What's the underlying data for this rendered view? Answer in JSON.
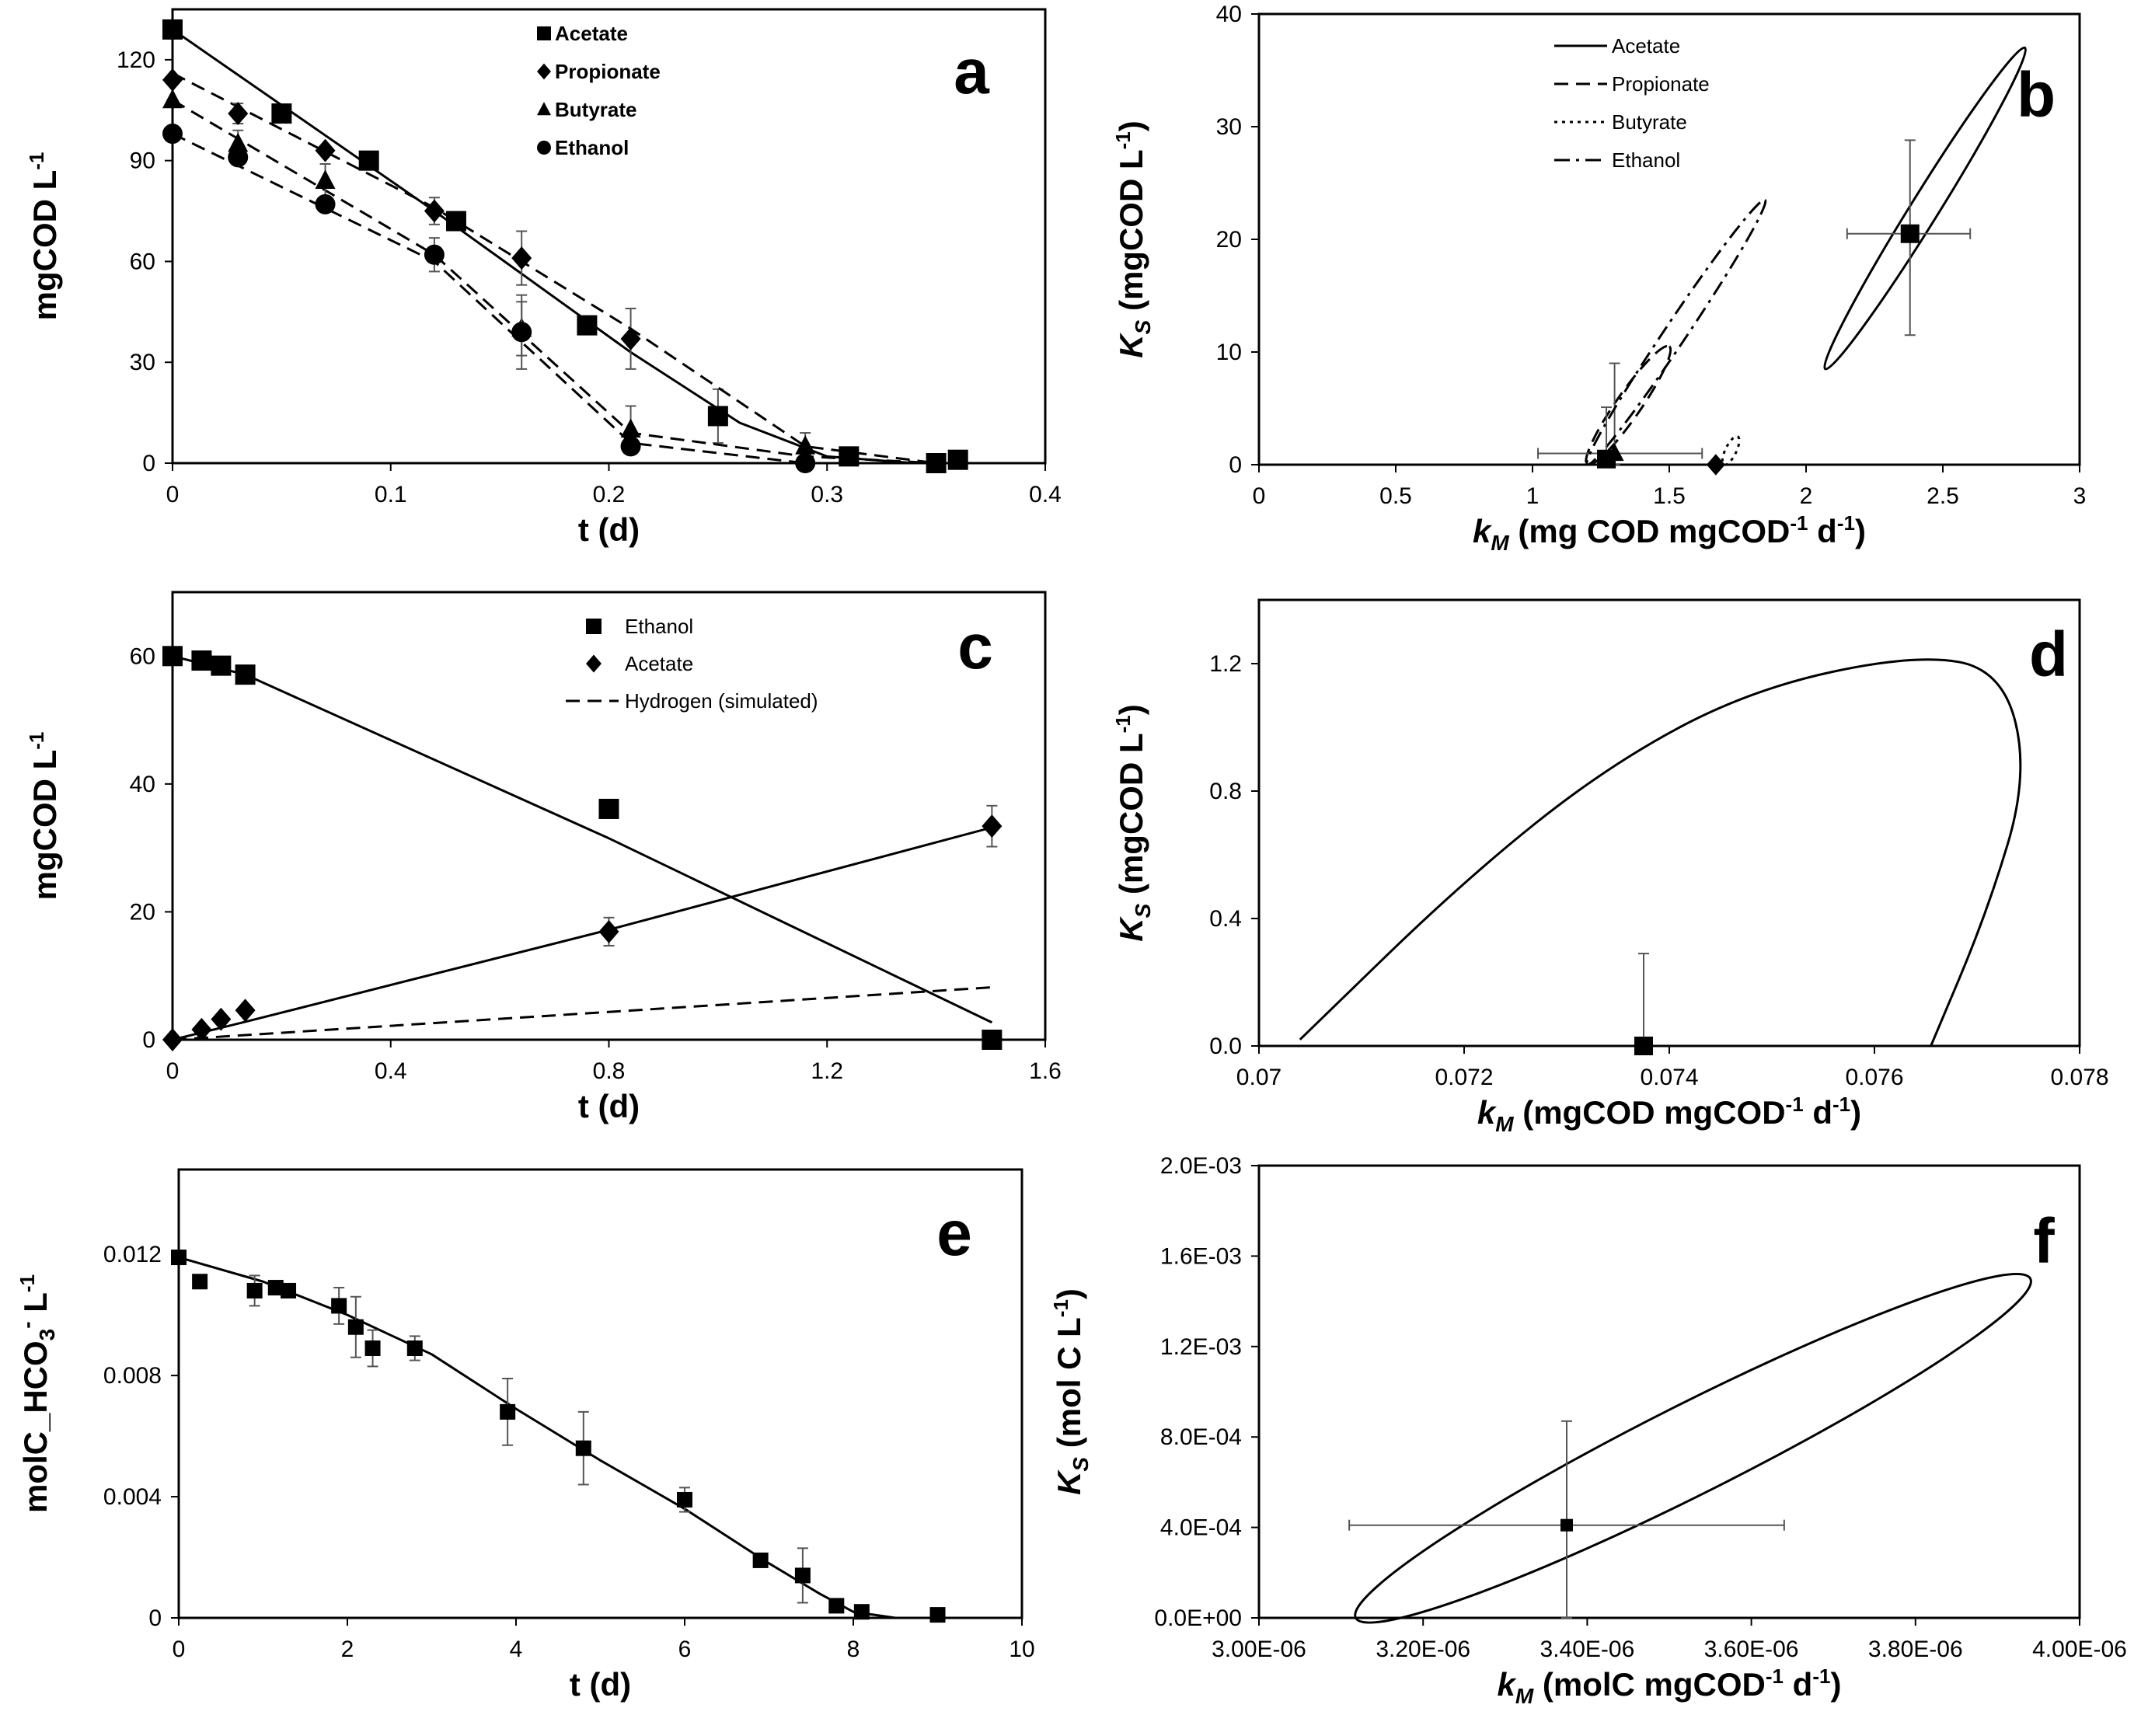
{
  "chart_data": [
    {
      "panel": "a",
      "type": "scatter",
      "xlabel": "t (d)",
      "ylabel": "mgCOD L-1",
      "xlim": [
        0,
        0.4
      ],
      "ylim": [
        0,
        135
      ],
      "xticks": [
        "0",
        "0.1",
        "0.2",
        "0.3",
        "0.4"
      ],
      "yticks": [
        "0",
        "30",
        "60",
        "90",
        "120"
      ],
      "legend_position": "top-center",
      "series": [
        {
          "name": "Acetate",
          "marker": "square",
          "line": "solid",
          "x": [
            0,
            0.05,
            0.09,
            0.13,
            0.19,
            0.25,
            0.31,
            0.35,
            0.36
          ],
          "y": [
            129,
            104,
            90,
            72,
            41,
            14,
            2,
            0,
            1
          ],
          "err": [
            0,
            0,
            0,
            0,
            0,
            8,
            0,
            0,
            0
          ],
          "model_x": [
            0,
            0.12,
            0.21,
            0.26,
            0.3,
            0.34,
            0.36
          ],
          "model_y": [
            129,
            75,
            33,
            12,
            2,
            0,
            0
          ]
        },
        {
          "name": "Propionate",
          "marker": "diamond",
          "line": "dashed",
          "x": [
            0,
            0.03,
            0.07,
            0.12,
            0.16,
            0.21
          ],
          "y": [
            114,
            104,
            93,
            75,
            61,
            37
          ],
          "err": [
            0,
            3,
            0,
            4,
            8,
            9
          ],
          "model_x": [
            0,
            0.12,
            0.21,
            0.29,
            0.35
          ],
          "model_y": [
            116,
            76,
            40,
            5,
            0
          ]
        },
        {
          "name": "Butyrate",
          "marker": "triangle",
          "line": "dashed",
          "x": [
            0,
            0.03,
            0.07,
            0.16,
            0.21,
            0.29
          ],
          "y": [
            108,
            95,
            84,
            40,
            10,
            5
          ],
          "err": [
            0,
            4,
            5,
            8,
            7,
            4
          ],
          "model_x": [
            0,
            0.12,
            0.21,
            0.29,
            0.35
          ],
          "model_y": [
            108,
            62,
            9,
            2,
            0
          ]
        },
        {
          "name": "Ethanol",
          "marker": "circle",
          "line": "dashed",
          "x": [
            0,
            0.03,
            0.07,
            0.12,
            0.16,
            0.21,
            0.29
          ],
          "y": [
            98,
            91,
            77,
            62,
            39,
            5,
            0
          ],
          "err": [
            0,
            0,
            0,
            5,
            11,
            0,
            0
          ],
          "model_x": [
            0,
            0.12,
            0.21,
            0.29,
            0.35
          ],
          "model_y": [
            98,
            60,
            6,
            0,
            0
          ]
        }
      ]
    },
    {
      "panel": "b",
      "type": "scatter",
      "xlabel": "kM (mg COD mgCOD-1 d-1)",
      "ylabel": "KS (mgCOD L-1)",
      "xlim": [
        0,
        3
      ],
      "ylim": [
        0,
        40
      ],
      "xticks": [
        "0",
        "0.5",
        "1",
        "1.5",
        "2",
        "2.5",
        "3"
      ],
      "yticks": [
        "0",
        "10",
        "20",
        "30",
        "40"
      ],
      "legend_position": "top-left",
      "series": [
        {
          "name": "Acetate",
          "line": "solid",
          "estimate": [
            2.38,
            20.5
          ],
          "xerr": [
            2.15,
            2.6
          ],
          "yerr": [
            11.5,
            28.8
          ],
          "region": {
            "lower": [
              2.07,
              8.5
            ],
            "upper": [
              2.8,
              37
            ]
          }
        },
        {
          "name": "Propionate",
          "line": "dashed",
          "estimate": [
            1.67,
            0
          ],
          "region": {
            "lower": [
              1.2,
              0
            ],
            "upper": [
              1.5,
              10.5
            ]
          }
        },
        {
          "name": "Butyrate",
          "line": "dotted",
          "estimate": [
            1.3,
            1.0
          ],
          "xerr": [
            1.02,
            1.62
          ],
          "yerr": [
            0,
            9
          ],
          "region": {
            "lower": [
              1.7,
              0
            ],
            "upper": [
              1.75,
              2.5
            ]
          }
        },
        {
          "name": "Ethanol",
          "line": "dash-dot",
          "estimate": [
            1.27,
            0.5
          ],
          "yerr": [
            0,
            5.1
          ],
          "region": {
            "lower": [
              1.2,
              0
            ],
            "upper": [
              1.85,
              23.5
            ]
          }
        }
      ]
    },
    {
      "panel": "c",
      "type": "scatter",
      "xlabel": "t (d)",
      "ylabel": "mgCOD L-1",
      "xlim": [
        0,
        1.8
      ],
      "ylim": [
        0,
        70
      ],
      "xticks": [
        "0",
        "0.4",
        "0.8",
        "1.2",
        "1.6"
      ],
      "yticks": [
        "0",
        "20",
        "40",
        "60"
      ],
      "legend_position": "top-center",
      "series": [
        {
          "name": "Ethanol",
          "marker": "square",
          "line": "solid",
          "x": [
            0,
            0.06,
            0.1,
            0.15,
            0.9,
            1.69
          ],
          "y": [
            60,
            59.3,
            58.5,
            57.1,
            36.1,
            0
          ],
          "model_x": [
            0,
            0.15,
            0.9,
            1.69
          ],
          "model_y": [
            60,
            57.1,
            31.5,
            2.7
          ]
        },
        {
          "name": "Acetate",
          "marker": "diamond",
          "line": "solid",
          "x": [
            0,
            0.06,
            0.1,
            0.15,
            0.9,
            1.69
          ],
          "y": [
            0,
            1.6,
            3.2,
            4.6,
            16.9,
            33.4
          ],
          "err": [
            0,
            0,
            0,
            0,
            2.2,
            3.2
          ],
          "model_x": [
            0,
            0.15,
            0.9,
            1.69
          ],
          "model_y": [
            0,
            2.8,
            17.2,
            33.2
          ]
        },
        {
          "name": "Hydrogen (simulated)",
          "line": "dashed",
          "model_x": [
            0,
            0.6,
            1.2,
            1.69
          ],
          "model_y": [
            0,
            2.9,
            5.8,
            8.2
          ]
        }
      ]
    },
    {
      "panel": "d",
      "type": "scatter",
      "xlabel": "kM (mgCOD mgCOD-1 d-1)",
      "ylabel": "KS (mgCOD L-1)",
      "xlim": [
        0.07,
        0.078
      ],
      "ylim": [
        0,
        1.4
      ],
      "xticks": [
        "0.07",
        "0.072",
        "0.074",
        "0.076",
        "0.078"
      ],
      "yticks": [
        "0.0",
        "0.4",
        "0.8",
        "1.2"
      ],
      "series": [
        {
          "name": "",
          "estimate": [
            0.07375,
            0.0
          ],
          "yerr": [
            0,
            0.29
          ],
          "region": [
            [
              0.0704,
              0.02
            ],
            [
              0.072,
              0.52
            ],
            [
              0.0734,
              0.88
            ],
            [
              0.0748,
              1.12
            ],
            [
              0.0764,
              1.23
            ],
            [
              0.07725,
              1.18
            ],
            [
              0.0775,
              0.85
            ],
            [
              0.0771,
              0.42
            ],
            [
              0.07655,
              0.0
            ]
          ]
        }
      ]
    },
    {
      "panel": "e",
      "type": "scatter",
      "xlabel": "t (d)",
      "ylabel": "molC_HCO3- L-1",
      "xlim": [
        0,
        10
      ],
      "ylim": [
        0,
        0.0148
      ],
      "xticks": [
        "0",
        "2",
        "4",
        "6",
        "8",
        "10"
      ],
      "yticks": [
        "0",
        "0.004",
        "0.008",
        "0.012"
      ],
      "series": [
        {
          "name": "",
          "marker": "square",
          "line": "solid",
          "x": [
            0,
            0.25,
            0.9,
            1.15,
            1.3,
            1.9,
            2.1,
            2.3,
            2.8,
            3.9,
            4.8,
            6.0,
            6.9,
            7.4,
            7.8,
            8.1,
            9.0
          ],
          "y": [
            0.0119,
            0.0111,
            0.0108,
            0.0109,
            0.0108,
            0.0103,
            0.0096,
            0.0089,
            0.0089,
            0.0068,
            0.0056,
            0.0039,
            0.0019,
            0.0014,
            0.0004,
            0.0002,
            0.0001
          ],
          "err": [
            0,
            0,
            0.0005,
            0.0002,
            0,
            0.0006,
            0.001,
            0.0006,
            0.0004,
            0.0011,
            0.0012,
            0.0004,
            0,
            0.0009,
            0,
            0,
            0
          ],
          "model_x": [
            0,
            1,
            2,
            3,
            4,
            5,
            6,
            7,
            7.6,
            8,
            8.5,
            9
          ],
          "model_y": [
            0.0119,
            0.0111,
            0.01,
            0.0087,
            0.0069,
            0.0052,
            0.0036,
            0.0018,
            0.0008,
            0.0002,
            0.0,
            0.0
          ]
        }
      ]
    },
    {
      "panel": "f",
      "type": "scatter",
      "xlabel": "kM (molC mgCOD-1 d-1)",
      "ylabel": "KS (mol C L-1)",
      "xlim": [
        3e-06,
        4e-06
      ],
      "ylim": [
        0,
        0.002
      ],
      "xticks": [
        "3.00E-06",
        "3.20E-06",
        "3.40E-06",
        "3.60E-06",
        "3.80E-06",
        "4.00E-06"
      ],
      "yticks": [
        "0.0E+00",
        "4.0E-04",
        "8.0E-04",
        "1.2E-03",
        "1.6E-03",
        "2.0E-03"
      ],
      "series": [
        {
          "name": "",
          "estimate": [
            3.375e-06,
            0.00041
          ],
          "xerr": [
            3.11e-06,
            3.64e-06
          ],
          "yerr": [
            0,
            0.00087
          ],
          "region": {
            "lower": [
              3.08e-06,
              0.0
            ],
            "upper": [
              3.94e-06,
              0.0015
            ]
          }
        }
      ]
    }
  ],
  "panels": [
    {
      "letter": "a",
      "xlabel": "t (d)",
      "ylabel_main": "mgCOD L",
      "ylabel_sup": "-1",
      "legend": [
        "Acetate",
        "Propionate",
        "Butyrate",
        "Ethanol"
      ]
    },
    {
      "letter": "b",
      "xlabel_main": "k",
      "xlabel_sub": "M",
      "xlabel_rest": " (mg COD mgCOD",
      "xlabel_sup1": "-1",
      "xlabel_mid": " d",
      "xlabel_sup2": "-1",
      "xlabel_end": ")",
      "ylabel_main": "K",
      "ylabel_sub": "S",
      "ylabel_rest": " (mgCOD L",
      "ylabel_sup": "-1",
      "ylabel_end": ")",
      "legend": [
        "Acetate",
        "Propionate",
        "Butyrate",
        "Ethanol"
      ]
    },
    {
      "letter": "c",
      "xlabel": "t (d)",
      "ylabel_main": "mgCOD L",
      "ylabel_sup": "-1",
      "legend": [
        "Ethanol",
        "Acetate",
        "Hydrogen (simulated)"
      ]
    },
    {
      "letter": "d",
      "xlabel_main": "k",
      "xlabel_sub": "M",
      "xlabel_rest": " (mgCOD mgCOD",
      "xlabel_sup1": "-1",
      "xlabel_mid": " d",
      "xlabel_sup2": "-1",
      "xlabel_end": ")",
      "ylabel_main": "K",
      "ylabel_sub": "S",
      "ylabel_rest": " (mgCOD L",
      "ylabel_sup": "-1",
      "ylabel_end": ")"
    },
    {
      "letter": "e",
      "xlabel": "t (d)",
      "ylabel_main": "molC_HCO",
      "ylabel_sub": "3",
      "ylabel_sup0": "-",
      "ylabel_rest": " L",
      "ylabel_sup": "-1"
    },
    {
      "letter": "f",
      "xlabel_main": "k",
      "xlabel_sub": "M",
      "xlabel_rest": " (molC mgCOD",
      "xlabel_sup1": "-1",
      "xlabel_mid": " d",
      "xlabel_sup2": "-1",
      "xlabel_end": ")",
      "ylabel_main": "K",
      "ylabel_sub": "S",
      "ylabel_rest": " (mol C L",
      "ylabel_sup": "-1",
      "ylabel_end": ")"
    }
  ]
}
